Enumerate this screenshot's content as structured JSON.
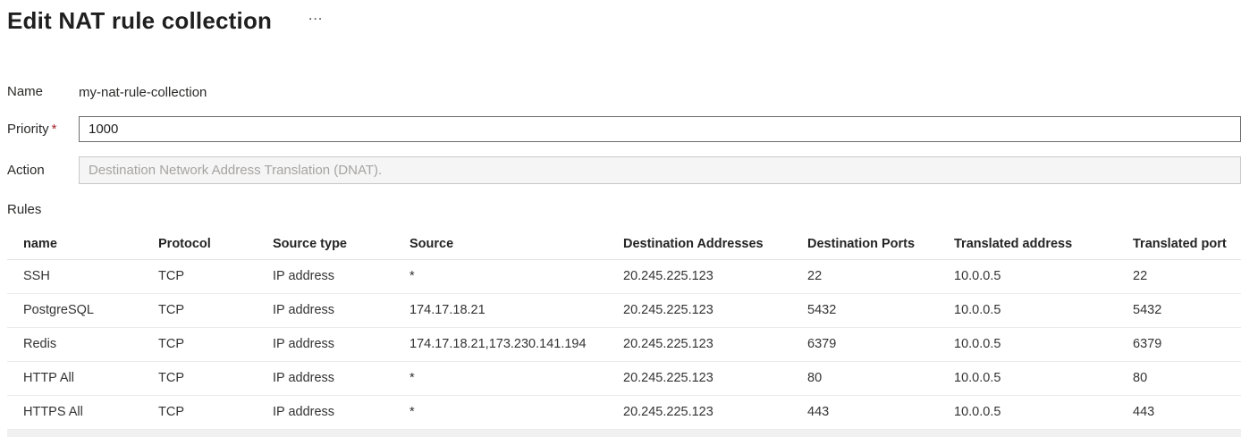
{
  "page": {
    "title": "Edit NAT rule collection",
    "more_options_icon": "…"
  },
  "form": {
    "name_label": "Name",
    "name_value": "my-nat-rule-collection",
    "priority_label": "Priority",
    "required_marker": "*",
    "priority_value": "1000",
    "action_label": "Action",
    "action_placeholder": "Destination Network Address Translation (DNAT).",
    "rules_label": "Rules"
  },
  "rules_table": {
    "columns": [
      "name",
      "Protocol",
      "Source type",
      "Source",
      "Destination Addresses",
      "Destination Ports",
      "Translated address",
      "Translated port"
    ],
    "rows": [
      [
        "SSH",
        "TCP",
        "IP address",
        "*",
        "20.245.225.123",
        "22",
        "10.0.0.5",
        "22"
      ],
      [
        "PostgreSQL",
        "TCP",
        "IP address",
        "174.17.18.21",
        "20.245.225.123",
        "5432",
        "10.0.0.5",
        "5432"
      ],
      [
        "Redis",
        "TCP",
        "IP address",
        "174.17.18.21,173.230.141.194",
        "20.245.225.123",
        "6379",
        "10.0.0.5",
        "6379"
      ],
      [
        "HTTP All",
        "TCP",
        "IP address",
        "*",
        "20.245.225.123",
        "80",
        "10.0.0.5",
        "80"
      ],
      [
        "HTTPS All",
        "TCP",
        "IP address",
        "*",
        "20.245.225.123",
        "443",
        "10.0.0.5",
        "443"
      ]
    ]
  },
  "colors": {
    "title_text": "#1f1f1f",
    "body_text": "#323130",
    "required_marker": "#a4262c",
    "input_border": "#6b6b6b",
    "disabled_field_bg": "#f5f5f5",
    "disabled_field_border": "#c8c8c8",
    "placeholder_text": "#a6a4a2",
    "row_separator": "#ebebeb",
    "bottom_strip_bg": "#f1f1f1"
  }
}
